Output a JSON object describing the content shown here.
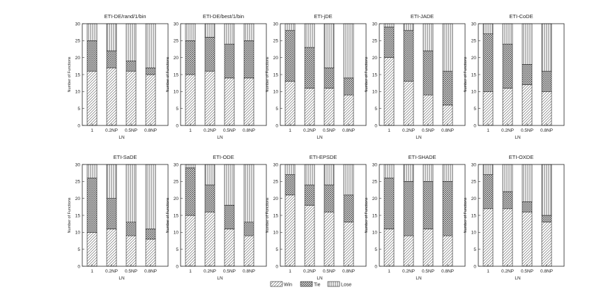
{
  "chart_data": [
    {
      "type": "bar",
      "stacked": true,
      "title": "ETI-DE/rand/1/bin",
      "xlabel": "LN",
      "ylabel": "Number of Functions",
      "ylim": [
        0,
        30
      ],
      "yticks": [
        0,
        5,
        10,
        15,
        20,
        25,
        30
      ],
      "categories": [
        "1",
        "0.2NP",
        "0.5NP",
        "0.8NP"
      ],
      "series": [
        {
          "name": "Win",
          "values": [
            16,
            17,
            16,
            15
          ]
        },
        {
          "name": "Tie",
          "values": [
            9,
            5,
            3,
            2
          ]
        },
        {
          "name": "Lose",
          "values": [
            5,
            8,
            11,
            13
          ]
        }
      ]
    },
    {
      "type": "bar",
      "stacked": true,
      "title": "ETI-DE/best/1/bin",
      "xlabel": "LN",
      "ylabel": "Number of Functions",
      "ylim": [
        0,
        30
      ],
      "yticks": [
        0,
        5,
        10,
        15,
        20,
        25,
        30
      ],
      "categories": [
        "1",
        "0.2NP",
        "0.5NP",
        "0.8NP"
      ],
      "series": [
        {
          "name": "Win",
          "values": [
            15,
            16,
            14,
            14
          ]
        },
        {
          "name": "Tie",
          "values": [
            10,
            10,
            10,
            11
          ]
        },
        {
          "name": "Lose",
          "values": [
            5,
            4,
            6,
            5
          ]
        }
      ]
    },
    {
      "type": "bar",
      "stacked": true,
      "title": "ETI-jDE",
      "xlabel": "LN",
      "ylabel": "Number of Functions",
      "ylim": [
        0,
        30
      ],
      "yticks": [
        0,
        5,
        10,
        15,
        20,
        25,
        30
      ],
      "categories": [
        "1",
        "0.2NP",
        "0.5NP",
        "0.8NP"
      ],
      "series": [
        {
          "name": "Win",
          "values": [
            13,
            11,
            11,
            9
          ]
        },
        {
          "name": "Tie",
          "values": [
            15,
            12,
            6,
            5
          ]
        },
        {
          "name": "Lose",
          "values": [
            2,
            7,
            13,
            16
          ]
        }
      ]
    },
    {
      "type": "bar",
      "stacked": true,
      "title": "ETI-JADE",
      "xlabel": "LN",
      "ylabel": "Number of Functions",
      "ylim": [
        0,
        30
      ],
      "yticks": [
        0,
        5,
        10,
        15,
        20,
        25,
        30
      ],
      "categories": [
        "1",
        "0.2NP",
        "0.5NP",
        "0.8NP"
      ],
      "series": [
        {
          "name": "Win",
          "values": [
            20,
            13,
            9,
            6
          ]
        },
        {
          "name": "Tie",
          "values": [
            9,
            15,
            13,
            10
          ]
        },
        {
          "name": "Lose",
          "values": [
            1,
            2,
            8,
            14
          ]
        }
      ]
    },
    {
      "type": "bar",
      "stacked": true,
      "title": "ETI-CoDE",
      "xlabel": "LN",
      "ylabel": "Number of Functions",
      "ylim": [
        0,
        30
      ],
      "yticks": [
        0,
        5,
        10,
        15,
        20,
        25,
        30
      ],
      "categories": [
        "1",
        "0.2NP",
        "0.5NP",
        "0.8NP"
      ],
      "series": [
        {
          "name": "Win",
          "values": [
            10,
            11,
            12,
            10
          ]
        },
        {
          "name": "Tie",
          "values": [
            17,
            13,
            6,
            6
          ]
        },
        {
          "name": "Lose",
          "values": [
            3,
            6,
            12,
            14
          ]
        }
      ]
    },
    {
      "type": "bar",
      "stacked": true,
      "title": "ETI-SaDE",
      "xlabel": "LN",
      "ylabel": "Number of Functions",
      "ylim": [
        0,
        30
      ],
      "yticks": [
        0,
        5,
        10,
        15,
        20,
        25,
        30
      ],
      "categories": [
        "1",
        "0.2NP",
        "0.5NP",
        "0.8NP"
      ],
      "series": [
        {
          "name": "Win",
          "values": [
            10,
            11,
            9,
            8
          ]
        },
        {
          "name": "Tie",
          "values": [
            16,
            9,
            4,
            3
          ]
        },
        {
          "name": "Lose",
          "values": [
            4,
            10,
            17,
            19
          ]
        }
      ]
    },
    {
      "type": "bar",
      "stacked": true,
      "title": "ETI-ODE",
      "xlabel": "LN",
      "ylabel": "Number of Functions",
      "ylim": [
        0,
        30
      ],
      "yticks": [
        0,
        5,
        10,
        15,
        20,
        25,
        30
      ],
      "categories": [
        "1",
        "0.2NP",
        "0.5NP",
        "0.8NP"
      ],
      "series": [
        {
          "name": "Win",
          "values": [
            15,
            16,
            11,
            9
          ]
        },
        {
          "name": "Tie",
          "values": [
            14,
            8,
            7,
            4
          ]
        },
        {
          "name": "Lose",
          "values": [
            1,
            6,
            12,
            17
          ]
        }
      ]
    },
    {
      "type": "bar",
      "stacked": true,
      "title": "ETI-EPSDE",
      "xlabel": "LN",
      "ylabel": "Number of Functions",
      "ylim": [
        0,
        30
      ],
      "yticks": [
        0,
        5,
        10,
        15,
        20,
        25,
        30
      ],
      "categories": [
        "1",
        "0.2NP",
        "0.5NP",
        "0.8NP"
      ],
      "series": [
        {
          "name": "Win",
          "values": [
            21,
            18,
            16,
            13
          ]
        },
        {
          "name": "Tie",
          "values": [
            6,
            6,
            8,
            8
          ]
        },
        {
          "name": "Lose",
          "values": [
            3,
            6,
            6,
            9
          ]
        }
      ]
    },
    {
      "type": "bar",
      "stacked": true,
      "title": "ETI-SHADE",
      "xlabel": "LN",
      "ylabel": "Number of Functions",
      "ylim": [
        0,
        30
      ],
      "yticks": [
        0,
        5,
        10,
        15,
        20,
        25,
        30
      ],
      "categories": [
        "1",
        "0.2NP",
        "0.5NP",
        "0.8NP"
      ],
      "series": [
        {
          "name": "Win",
          "values": [
            11,
            9,
            11,
            9
          ]
        },
        {
          "name": "Tie",
          "values": [
            15,
            16,
            14,
            16
          ]
        },
        {
          "name": "Lose",
          "values": [
            4,
            5,
            5,
            5
          ]
        }
      ]
    },
    {
      "type": "bar",
      "stacked": true,
      "title": "ETI-OXDE",
      "xlabel": "LN",
      "ylabel": "Number of Functions",
      "ylim": [
        0,
        30
      ],
      "yticks": [
        0,
        5,
        10,
        15,
        20,
        25,
        30
      ],
      "categories": [
        "1",
        "0.2NP",
        "0.5NP",
        "0.8NP"
      ],
      "series": [
        {
          "name": "Win",
          "values": [
            17,
            17,
            16,
            13
          ]
        },
        {
          "name": "Tie",
          "values": [
            10,
            5,
            3,
            2
          ]
        },
        {
          "name": "Lose",
          "values": [
            3,
            8,
            11,
            15
          ]
        }
      ]
    }
  ],
  "legend": {
    "placement": "bottom",
    "items": [
      "Win",
      "Tie",
      "Lose"
    ]
  }
}
